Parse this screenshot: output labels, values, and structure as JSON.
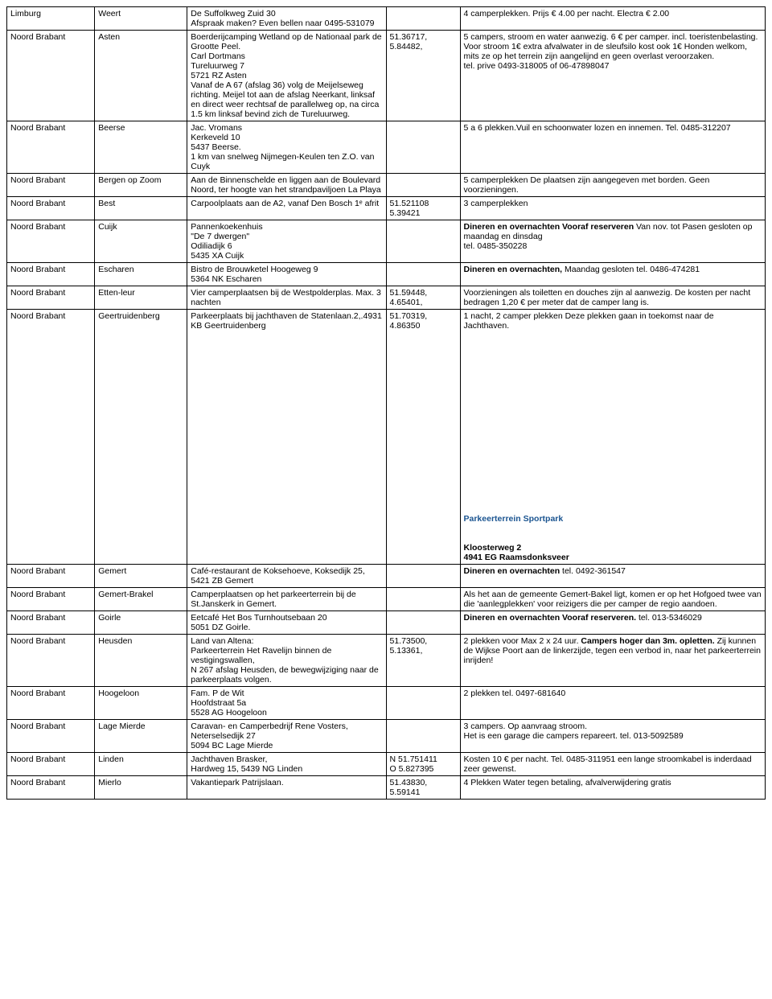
{
  "rows": [
    {
      "c1": "Limburg",
      "c2": "Weert",
      "c3": "De Suffolkweg Zuid 30\nAfspraak maken? Even bellen naar 0495-531079",
      "c4": "",
      "c5": "4 camperplekken. Prijs € 4.00 per nacht. Electra € 2.00"
    },
    {
      "c1": "Noord Brabant",
      "c2": "Asten",
      "c3": "Boerderijcamping Wetland op de Nationaal park de Grootte Peel.\nCarl Dortmans\nTureluurweg 7\n5721 RZ Asten\nVanaf de A 67 (afslag 36) volg de Meijelseweg richting. Meijel tot aan de afslag Neerkant, linksaf en direct weer rechtsaf de parallelweg op, na circa 1.5 km linksaf bevind zich de Tureluurweg.",
      "c4": "51.36717,\n 5.84482,",
      "c5": "5 campers, stroom en water aanwezig. 6 €  per camper. incl. toeristenbelasting. Voor stroom 1€ extra afvalwater in de sleufsilo kost ook 1€  Honden welkom, mits ze op het terrein zijn aangelijnd en geen overlast veroorzaken.\ntel. prive 0493-318005 of 06-47898047"
    },
    {
      "c1": "Noord Brabant",
      "c2": "Beerse",
      "c3": "Jac. Vromans\nKerkeveld 10\n5437 Beerse.\n1 km van snelweg Nijmegen-Keulen ten Z.O. van Cuyk",
      "c4": "",
      "c5": "5 a 6 plekken.Vuil en schoonwater lozen en innemen. Tel. 0485-312207"
    },
    {
      "c1": "Noord Brabant",
      "c2": "Bergen op Zoom",
      "c3": "Aan de Binnenschelde en liggen aan de Boulevard Noord, ter hoogte van het strandpaviljoen La Playa",
      "c4": "",
      "c5": "5 camperplekken De plaatsen zijn aangegeven met borden. Geen voorzieningen."
    },
    {
      "c1": "Noord Brabant",
      "c2": "Best",
      "c3": "Carpoolplaats aan de A2, vanaf Den Bosch 1ᵉ afrit",
      "c4": "51.521108\n5.39421",
      "c5": "3 camperplekken"
    },
    {
      "c1": "Noord Brabant",
      "c2": "Cuijk",
      "c3": "Pannenkoekenhuis\n \"De 7 dwergen\"\nOdiliadijk 6\n5435 XA Cuijk",
      "c4": "",
      "c5_html": "<span class='bold'>Dineren en overnachten Vooraf reserveren</span> Van nov. tot Pasen gesloten op maandag en dinsdag<br>tel. 0485-350228"
    },
    {
      "c1": "Noord Brabant",
      "c2": "Escharen",
      "c3": "Bistro de Brouwketel Hoogeweg 9\n5364 NK Escharen",
      "c4": "",
      "c5_html": "<span class='bold'>Dineren en overnachten,</span> Maandag gesloten tel. 0486-474281"
    },
    {
      "c1": "Noord Brabant",
      "c2": "Etten-leur",
      "c3": "Vier camperplaatsen bij de Westpolderplas. Max. 3 nachten",
      "c4": "51.59448,\n4.65401,",
      "c5": "Voorzieningen als toiletten en douches zijn al aanwezig. De kosten per nacht bedragen 1,20 € per meter dat de camper lang is."
    },
    {
      "c1": "Noord Brabant",
      "c2": "Geertruidenberg",
      "c3": "Parkeerplaats bij jachthaven de Statenlaan.2,.4931 KB Geertruidenberg",
      "c4": " 51.70319,\n4.86350",
      "c5_html": "1 nacht, 2 camper plekken  Deze plekken gaan in toekomst naar de Jachthaven.<br><br><br><br><br><br><br><br><br><br><br><br><br><br><br><br><br><br><br><br><span class='special-link'>Parkeerterrein Sportpark</span><br><br><br><span class='bold'>Kloosterweg 2<br>4941 EG Raamsdonksveer</span>"
    },
    {
      "c1": "Noord Brabant",
      "c2": "Gemert",
      "c3": "Café-restaurant de Koksehoeve, Koksedijk 25, 5421 ZB Gemert",
      "c4": "",
      "c5_html": "<span class='bold'>Dineren en overnachten</span> tel. 0492-361547"
    },
    {
      "c1": "Noord Brabant",
      "c2": "Gemert-Brakel",
      "c3": "Camperplaatsen op het parkeerterrein bij de St.Janskerk in Gemert.",
      "c4": "",
      "c5": "Als het aan de gemeente Gemert-Bakel ligt, komen er op het Hofgoed twee van die 'aanlegplekken' voor reizigers die per camper de regio aandoen."
    },
    {
      "c1": "Noord Brabant",
      "c2": "Goirle",
      "c3": "Eetcafé Het Bos Turnhoutsebaan 20\n5051 DZ Goirle.",
      "c4": "",
      "c5_html": "<span class='bold'>Dineren en overnachten Vooraf reserveren.</span> tel. 013-5346029"
    },
    {
      "c1": "Noord Brabant",
      "c2": "Heusden",
      "c3": "Land van Altena:\nParkeerterrein Het Ravelijn binnen de vestigingswallen,\nN 267 afslag Heusden, de bewegwijziging naar de parkeerplaats volgen.",
      "c4": "51.73500,\n 5.13361,",
      "c5_html": "2 plekken voor Max 2 x 24 uur. <span class='bold'>Campers hoger dan 3m. opletten.</span> Zij kunnen de Wijkse Poort aan de linkerzijde, tegen een verbod in, naar het parkeerterrein inrijden!"
    },
    {
      "c1": "Noord Brabant",
      "c2": "Hoogeloon",
      "c3": "  Fam. P de Wit\n  Hoofdstraat 5a\n5528 AG Hoogeloon",
      "c4": "",
      "c5": " 2 plekken  tel. 0497-681640"
    },
    {
      "c1": "Noord Brabant",
      "c2": "Lage Mierde",
      "c3": "Caravan- en Camperbedrijf Rene Vosters,\nNeterselsedijk 27\n5094 BC Lage Mierde",
      "c4": "",
      "c5": "3 campers. Op aanvraag stroom.\nHet is een garage die campers repareert. tel. 013-5092589"
    },
    {
      "c1": "Noord Brabant",
      "c2": "Linden",
      "c3": "Jachthaven Brasker,\nHardweg 15, 5439 NG Linden",
      "c4": "N 51.751411\nO 5.827395",
      "c5": "Kosten 10 € per nacht. Tel. 0485-311951 een lange stroomkabel is inderdaad zeer gewenst."
    },
    {
      "c1": "Noord Brabant",
      "c2": "Mierlo",
      "c3": " Vakantiepark Patrijslaan.",
      "c4": " 51.43830,\n 5.59141",
      "c5": "4 Plekken Water tegen betaling, afvalverwijdering gratis"
    }
  ]
}
